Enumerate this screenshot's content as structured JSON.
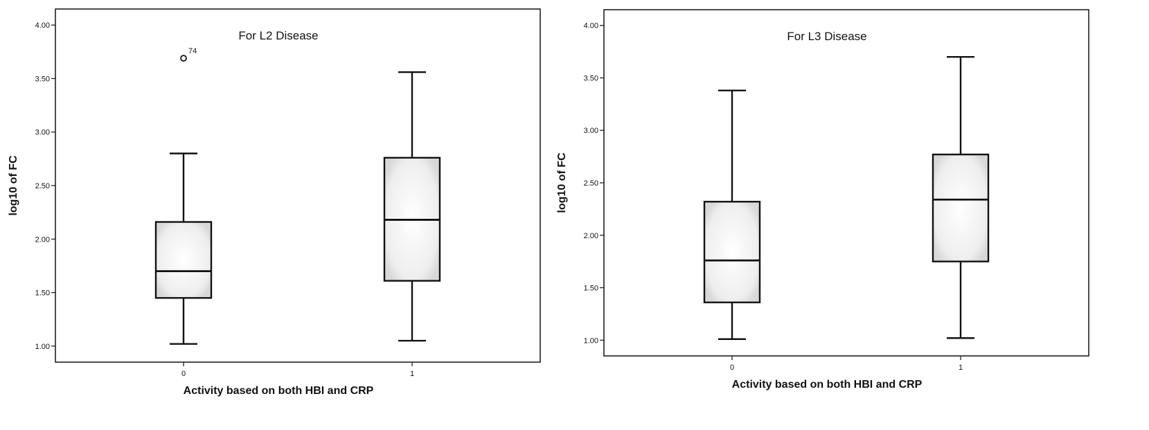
{
  "chart_data": [
    {
      "type": "boxplot",
      "title": "For L2 Disease",
      "xlabel": "Activity based on both HBI and CRP",
      "ylabel": "log10 of FC",
      "ylim": [
        0.85,
        4.15
      ],
      "yticks": [
        "1.00",
        "1.50",
        "2.00",
        "2.50",
        "3.00",
        "3.50",
        "4.00"
      ],
      "categories": [
        "0",
        "1"
      ],
      "boxes": [
        {
          "category": "0",
          "min": 1.02,
          "q1": 1.45,
          "median": 1.7,
          "q3": 2.16,
          "max": 2.8,
          "outliers": [
            {
              "value": 3.69,
              "label": "74"
            }
          ]
        },
        {
          "category": "1",
          "min": 1.05,
          "q1": 1.61,
          "median": 2.18,
          "q3": 2.76,
          "max": 3.56,
          "outliers": []
        }
      ],
      "grid": false
    },
    {
      "type": "boxplot",
      "title": "For L3 Disease",
      "xlabel": "Activity based on both HBI and CRP",
      "ylabel": "log10 of FC",
      "ylim": [
        0.85,
        4.15
      ],
      "yticks": [
        "1.00",
        "1.50",
        "2.00",
        "2.50",
        "3.00",
        "3.50",
        "4.00"
      ],
      "categories": [
        "0",
        "1"
      ],
      "boxes": [
        {
          "category": "0",
          "min": 1.01,
          "q1": 1.36,
          "median": 1.76,
          "q3": 2.32,
          "max": 3.38,
          "outliers": []
        },
        {
          "category": "1",
          "min": 1.02,
          "q1": 1.75,
          "median": 2.34,
          "q3": 2.77,
          "max": 3.7,
          "outliers": []
        }
      ],
      "grid": false
    }
  ]
}
